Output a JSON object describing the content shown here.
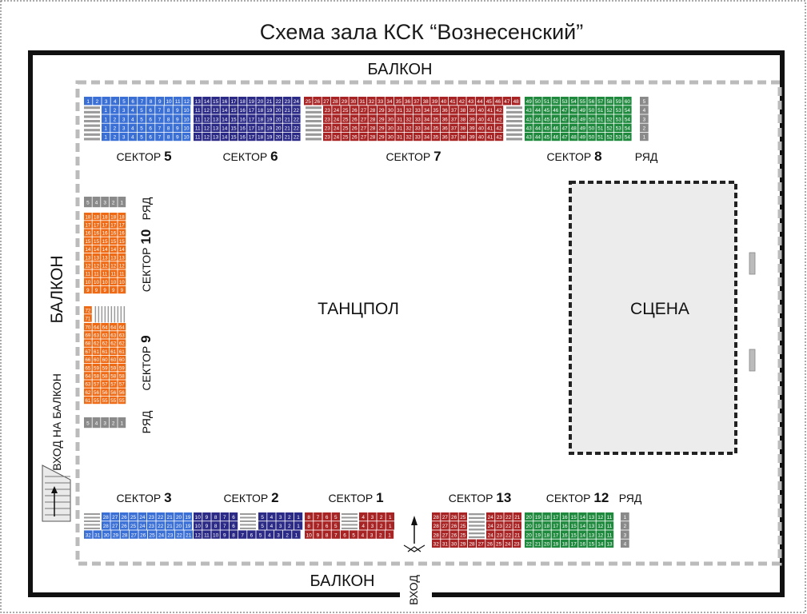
{
  "title": "Схема  зала КСК “Вознесенский”",
  "labels": {
    "balcony_top": "БАЛКОН",
    "balcony_bottom": "БАЛКОН",
    "balcony_left": "БАЛКОН",
    "entrance": "ВХОД",
    "balcony_entrance": "ВХОД  НА  БАЛКОН",
    "dance_floor": "ТАНЦПОЛ",
    "stage": "СЦЕНА",
    "sector_word": "СЕКТОР",
    "row_word": "РЯД"
  },
  "sector_numbers": {
    "s1": "1",
    "s2": "2",
    "s3": "3",
    "s5": "5",
    "s6": "6",
    "s7": "7",
    "s8": "8",
    "s9": "9",
    "s10": "10",
    "s12": "12",
    "s13": "13"
  },
  "row_numbers": {
    "top": [
      "5",
      "4",
      "3",
      "2",
      "1"
    ],
    "bottom": [
      "1",
      "2",
      "3",
      "4"
    ],
    "left": [
      "5",
      "4",
      "3",
      "2",
      "1"
    ]
  },
  "colors": {
    "sector_blue": "#3a6fd6",
    "sector_navy": "#2b2a86",
    "sector_red": "#a82424",
    "sector_green": "#1f8a3e",
    "sector_orange": "#ee6a14",
    "row_grey": "#8a8a8a",
    "stage_fill": "#ececec",
    "dash_grey": "#bbbbbb"
  }
}
